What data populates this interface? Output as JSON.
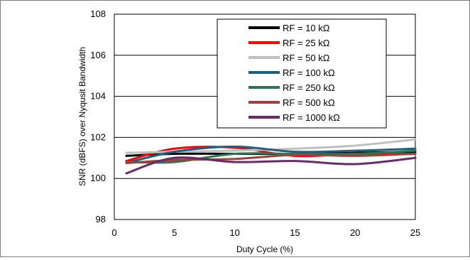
{
  "chart_data": {
    "type": "line",
    "title": "",
    "xlabel": "Duty Cycle (%)",
    "ylabel": "SNR (dBFS) over Nyqusit Bandwidth",
    "xlim": [
      0,
      25
    ],
    "ylim": [
      98,
      108
    ],
    "xticks": [
      0,
      5,
      10,
      15,
      20,
      25
    ],
    "yticks": [
      98,
      100,
      102,
      104,
      106,
      108
    ],
    "grid": true,
    "legend_position": "top-right",
    "series": [
      {
        "name": "RF = 10 kΩ",
        "color": "#000000",
        "x": [
          1,
          5,
          10,
          15,
          20,
          25
        ],
        "y": [
          101.1,
          101.2,
          101.2,
          101.2,
          101.25,
          101.3
        ]
      },
      {
        "name": "RF = 25 kΩ",
        "color": "#ff0000",
        "x": [
          1,
          5,
          10,
          15,
          20,
          25
        ],
        "y": [
          100.85,
          101.45,
          101.5,
          101.1,
          101.2,
          101.2
        ]
      },
      {
        "name": "RF = 50 kΩ",
        "color": "#bfbfbf",
        "x": [
          1,
          5,
          10,
          15,
          20,
          25
        ],
        "y": [
          101.25,
          101.3,
          101.35,
          101.45,
          101.6,
          101.9
        ]
      },
      {
        "name": "RF = 100 kΩ",
        "color": "#1f5f7f",
        "x": [
          1,
          5,
          10,
          15,
          20,
          25
        ],
        "y": [
          100.75,
          101.3,
          101.55,
          101.3,
          101.35,
          101.45
        ]
      },
      {
        "name": "RF = 250 kΩ",
        "color": "#2e7550",
        "x": [
          1,
          5,
          10,
          15,
          20,
          25
        ],
        "y": [
          100.8,
          100.8,
          101.2,
          101.2,
          101.2,
          101.35
        ]
      },
      {
        "name": "RF = 500 kΩ",
        "color": "#a0403a",
        "x": [
          1,
          5,
          10,
          15,
          20,
          25
        ],
        "y": [
          100.75,
          100.9,
          100.95,
          101.15,
          101.1,
          101.2
        ]
      },
      {
        "name": "RF = 1000 kΩ",
        "color": "#6a2a6a",
        "x": [
          1,
          5,
          10,
          15,
          20,
          25
        ],
        "y": [
          100.25,
          101.0,
          100.8,
          100.85,
          100.7,
          101.0
        ]
      }
    ]
  }
}
